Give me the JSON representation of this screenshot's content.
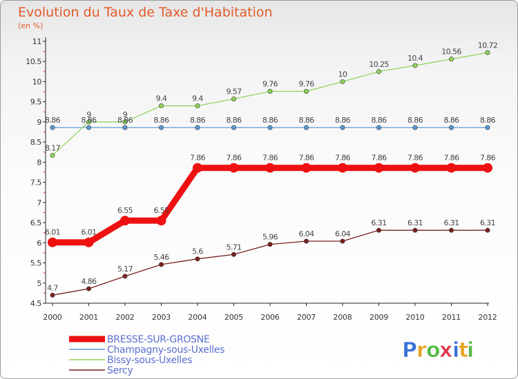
{
  "chart_data": {
    "type": "line",
    "title": "Evolution du Taux de Taxe d'Habitation",
    "subtitle": "(en %)",
    "x": [
      "2000",
      "2001",
      "2002",
      "2003",
      "2004",
      "2005",
      "2006",
      "2007",
      "2008",
      "2009",
      "2010",
      "2011",
      "2012"
    ],
    "y_ticks": [
      "4.5",
      "5",
      "5.5",
      "6",
      "6.5",
      "7",
      "7.5",
      "8",
      "8.5",
      "9",
      "9.5",
      "10",
      "10.5",
      "11"
    ],
    "ylim": [
      4.5,
      11
    ],
    "grid": false,
    "legend_position": "bottom-left",
    "series": [
      {
        "name": "BRESSE-SUR-GROSNE",
        "color": "#ee1111",
        "values": [
          6.01,
          6.01,
          6.55,
          6.55,
          7.86,
          7.86,
          7.86,
          7.86,
          7.86,
          7.86,
          7.86,
          7.86,
          7.86
        ],
        "labels": [
          "6.01",
          "6.01",
          "6.55",
          "6.55",
          "7.86",
          "7.86",
          "7.86",
          "7.86",
          "7.86",
          "7.86",
          "7.86",
          "7.86",
          "7.86"
        ]
      },
      {
        "name": "Champagny-sous-Uxelles",
        "color": "#5b9bd5",
        "values": [
          8.86,
          8.86,
          8.86,
          8.86,
          8.86,
          8.86,
          8.86,
          8.86,
          8.86,
          8.86,
          8.86,
          8.86,
          8.86
        ],
        "labels": [
          "8.86",
          "8.86",
          "8.86",
          "8.86",
          "8.86",
          "8.86",
          "8.86",
          "8.86",
          "8.86",
          "8.86",
          "8.86",
          "8.86",
          "8.86"
        ]
      },
      {
        "name": "Bissy-sous-Uxelles",
        "color": "#8fd45b",
        "values": [
          8.17,
          9,
          9,
          9.4,
          9.4,
          9.57,
          9.76,
          9.76,
          10,
          10.25,
          10.4,
          10.56,
          10.72
        ],
        "labels": [
          "8.17",
          "9",
          "9",
          "9.4",
          "9.4",
          "9.57",
          "9.76",
          "9.76",
          "10",
          "10.25",
          "10.4",
          "10.56",
          "10.72"
        ]
      },
      {
        "name": "Sercy",
        "color": "#7a1f1f",
        "values": [
          4.7,
          4.86,
          5.17,
          5.46,
          5.6,
          5.71,
          5.96,
          6.04,
          6.04,
          6.31,
          6.31,
          6.31,
          6.31
        ],
        "labels": [
          "4.7",
          "4.86",
          "5.17",
          "5.46",
          "5.6",
          "5.71",
          "5.96",
          "6.04",
          "6.04",
          "6.31",
          "6.31",
          "6.31",
          "6.31"
        ]
      }
    ]
  },
  "brand": {
    "letters": [
      "P",
      "r",
      "o",
      "x",
      "i",
      "t",
      "i"
    ],
    "colors": [
      "#3a6fd8",
      "#e8a01e",
      "#56b948",
      "#e0384b",
      "#3a6fd8",
      "#e8a01e",
      "#56b948"
    ]
  }
}
